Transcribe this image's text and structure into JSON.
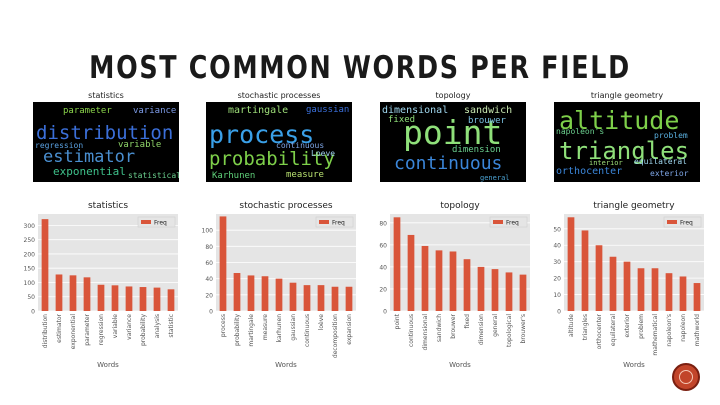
{
  "slide": {
    "title": "MOST COMMON WORDS PER FIELD"
  },
  "wordclouds": [
    {
      "title": "statistics",
      "words": [
        {
          "t": "distribution",
          "c": "#3b6fd9"
        },
        {
          "t": "estimator",
          "c": "#4a8fd0"
        },
        {
          "t": "exponential",
          "c": "#3ec08a"
        },
        {
          "t": "parameter",
          "c": "#8ad34a"
        },
        {
          "t": "regression",
          "c": "#5aa0e0"
        },
        {
          "t": "variance",
          "c": "#7c9ae6"
        },
        {
          "t": "variable",
          "c": "#8fd56a"
        },
        {
          "t": "statistical",
          "c": "#6bd08f"
        }
      ]
    },
    {
      "title": "stochastic processes",
      "words": [
        {
          "t": "process",
          "c": "#3aa0e8"
        },
        {
          "t": "probability",
          "c": "#7ed04a"
        },
        {
          "t": "martingale",
          "c": "#9fe07a"
        },
        {
          "t": "measure",
          "c": "#b8e070"
        },
        {
          "t": "gaussian",
          "c": "#3b6fd9"
        },
        {
          "t": "Karhunen",
          "c": "#5fd07a"
        },
        {
          "t": "continuous",
          "c": "#7fa7e8"
        },
        {
          "t": "Loeve",
          "c": "#a0d0f0"
        }
      ]
    },
    {
      "title": "topology",
      "words": [
        {
          "t": "point",
          "c": "#8fe07a"
        },
        {
          "t": "continuous",
          "c": "#3b86d9"
        },
        {
          "t": "dimensional",
          "c": "#a0d8f0"
        },
        {
          "t": "sandwich",
          "c": "#c8e8b0"
        },
        {
          "t": "brouwer",
          "c": "#7ac0e0"
        },
        {
          "t": "fixed",
          "c": "#8fe07a"
        },
        {
          "t": "dimension",
          "c": "#6bd08f"
        },
        {
          "t": "general",
          "c": "#4aa0d0"
        }
      ]
    },
    {
      "title": "triangle geometry",
      "words": [
        {
          "t": "altitude",
          "c": "#7ed04a"
        },
        {
          "t": "triangles",
          "c": "#8fe07a"
        },
        {
          "t": "orthocenter",
          "c": "#3b86d9"
        },
        {
          "t": "equilateral",
          "c": "#a0d8f0"
        },
        {
          "t": "napoleon's",
          "c": "#6bd08f"
        },
        {
          "t": "problem",
          "c": "#5ab0e0"
        },
        {
          "t": "exterior",
          "c": "#7fa7e8"
        },
        {
          "t": "interior",
          "c": "#9fe07a"
        }
      ]
    }
  ],
  "chart_data": [
    {
      "type": "bar",
      "title": "statistics",
      "xlabel": "Words",
      "ylabel": "",
      "legend": "Freq",
      "legend_position": "top-right",
      "categories": [
        "distribution",
        "estimator",
        "exponential",
        "parameter",
        "regression",
        "variable",
        "variance",
        "probability",
        "analysis",
        "statistic"
      ],
      "values": [
        322,
        128,
        125,
        118,
        92,
        90,
        86,
        84,
        82,
        76
      ],
      "yticks": [
        0,
        50,
        100,
        150,
        200,
        250,
        300
      ],
      "ylim": [
        0,
        340
      ],
      "grid": true,
      "color": "#d9553a"
    },
    {
      "type": "bar",
      "title": "stochastic processes",
      "xlabel": "Words",
      "ylabel": "",
      "legend": "Freq",
      "legend_position": "top-right",
      "categories": [
        "process",
        "probability",
        "martingale",
        "measure",
        "karhunen",
        "gaussian",
        "continuous",
        "loève",
        "decomposition",
        "expansion"
      ],
      "values": [
        117,
        47,
        44,
        43,
        40,
        35,
        32,
        32,
        30,
        30
      ],
      "yticks": [
        0,
        20,
        40,
        60,
        80,
        100
      ],
      "ylim": [
        0,
        120
      ],
      "grid": true,
      "color": "#d9553a"
    },
    {
      "type": "bar",
      "title": "topology",
      "xlabel": "Words",
      "ylabel": "",
      "legend": "Freq",
      "legend_position": "top-right",
      "categories": [
        "point",
        "continuous",
        "dimensional",
        "sandwich",
        "brouwer",
        "fixed",
        "dimension",
        "general",
        "topological",
        "brouwer's"
      ],
      "values": [
        85,
        69,
        59,
        55,
        54,
        47,
        40,
        38,
        35,
        33
      ],
      "yticks": [
        0,
        20,
        40,
        60,
        80
      ],
      "ylim": [
        0,
        88
      ],
      "grid": true,
      "color": "#d9553a"
    },
    {
      "type": "bar",
      "title": "triangle geometry",
      "xlabel": "Words",
      "ylabel": "",
      "legend": "Freq",
      "legend_position": "top-right",
      "categories": [
        "altitude",
        "triangles",
        "orthocenter",
        "equilateral",
        "exterior",
        "problem",
        "mathematical",
        "napoleon's",
        "napoleon",
        "mathworld"
      ],
      "values": [
        57,
        49,
        40,
        33,
        30,
        26,
        26,
        23,
        21,
        17
      ],
      "yticks": [
        0,
        10,
        20,
        30,
        40,
        50
      ],
      "ylim": [
        0,
        59
      ],
      "grid": true,
      "color": "#d9553a"
    }
  ]
}
